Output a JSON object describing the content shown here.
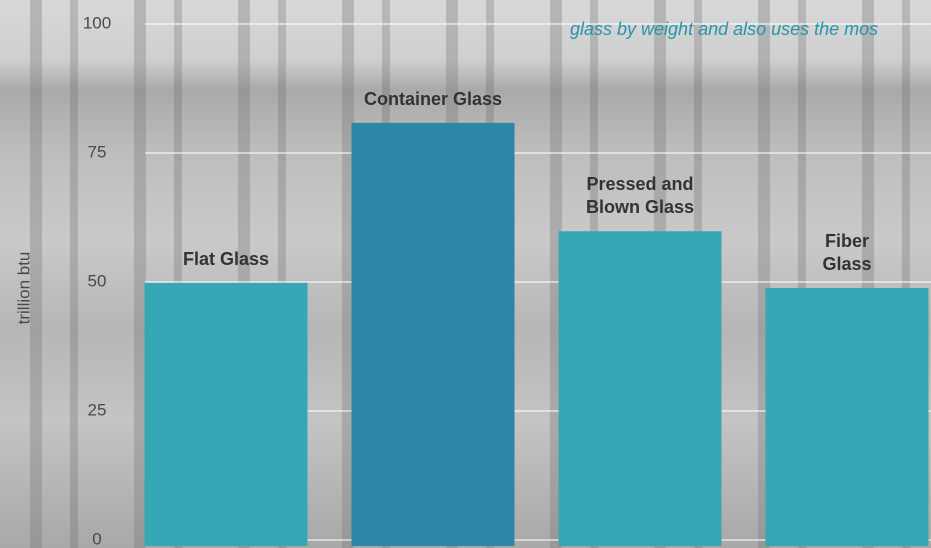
{
  "chart_data": {
    "type": "bar",
    "annotation": "glass by weight and also uses the mos",
    "y_label": "trillion btu",
    "categories": [
      "Flat Glass",
      "Container Glass",
      "Pressed and Blown Glass",
      "Fiber Glass"
    ],
    "values": [
      51,
      82,
      61,
      50
    ],
    "colors": [
      "#35a8b5",
      "#2c86a6",
      "#35a8b5",
      "#35a8b5"
    ],
    "ylim": [
      0,
      100
    ],
    "yticks": [
      0,
      25,
      50,
      75,
      100
    ],
    "grid": true
  }
}
